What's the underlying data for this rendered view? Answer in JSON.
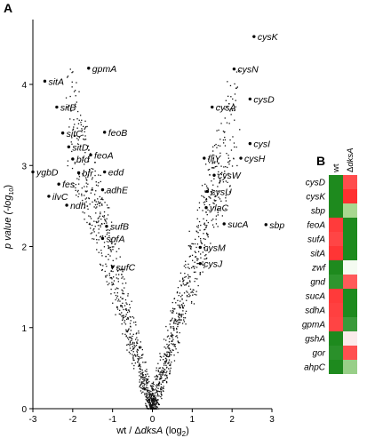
{
  "panel_a_letter": "A",
  "panel_b_letter": "B",
  "chart_data": [
    {
      "type": "scatter",
      "title": "",
      "xlabel_main": "wt / Δ",
      "xlabel_gene": "dksA",
      "xlabel_unit": " (log",
      "xlabel_sub": "2",
      "xlabel_close": ")",
      "ylabel_main": "p value (-log",
      "ylabel_sub": "10",
      "ylabel_close": ")",
      "xlim": [
        -3,
        3
      ],
      "ylim": [
        0,
        4.8
      ],
      "xticks": [
        -3,
        -2,
        -1,
        0,
        1,
        2,
        3
      ],
      "yticks": [
        0,
        1,
        2,
        3,
        4
      ],
      "labeled_points": [
        {
          "gene": "cysK",
          "x": 2.55,
          "y": 4.59
        },
        {
          "gene": "cysN",
          "x": 2.05,
          "y": 4.19
        },
        {
          "gene": "cysD",
          "x": 2.45,
          "y": 3.82
        },
        {
          "gene": "cysA",
          "x": 1.5,
          "y": 3.72
        },
        {
          "gene": "cysI",
          "x": 2.45,
          "y": 3.27
        },
        {
          "gene": "cysH",
          "x": 2.22,
          "y": 3.09
        },
        {
          "gene": "fliY",
          "x": 1.3,
          "y": 3.09
        },
        {
          "gene": "cysW",
          "x": 1.55,
          "y": 2.88
        },
        {
          "gene": "cysU",
          "x": 1.38,
          "y": 2.68
        },
        {
          "gene": "ylaC",
          "x": 1.35,
          "y": 2.48
        },
        {
          "gene": "sucA",
          "x": 1.8,
          "y": 2.28
        },
        {
          "gene": "sbp",
          "x": 2.85,
          "y": 2.27
        },
        {
          "gene": "cysM",
          "x": 1.2,
          "y": 1.99
        },
        {
          "gene": "cysJ",
          "x": 1.2,
          "y": 1.79
        },
        {
          "gene": "gpmA",
          "x": -1.6,
          "y": 4.2
        },
        {
          "gene": "sitA",
          "x": -2.7,
          "y": 4.04
        },
        {
          "gene": "sitB",
          "x": -2.4,
          "y": 3.72
        },
        {
          "gene": "sitC",
          "x": -2.25,
          "y": 3.4
        },
        {
          "gene": "feoB",
          "x": -1.2,
          "y": 3.41
        },
        {
          "gene": "sitD",
          "x": -2.1,
          "y": 3.23
        },
        {
          "gene": "feoA",
          "x": -1.55,
          "y": 3.13
        },
        {
          "gene": "bfd",
          "x": -2.0,
          "y": 3.08
        },
        {
          "gene": "ygbD",
          "x": -3.0,
          "y": 2.92
        },
        {
          "gene": "bfr",
          "x": -1.85,
          "y": 2.91
        },
        {
          "gene": "edd",
          "x": -1.2,
          "y": 2.92
        },
        {
          "gene": "fes",
          "x": -2.35,
          "y": 2.77
        },
        {
          "gene": "adhE",
          "x": -1.25,
          "y": 2.7
        },
        {
          "gene": "ilvC",
          "x": -2.6,
          "y": 2.62
        },
        {
          "gene": "ndh",
          "x": -2.15,
          "y": 2.51
        },
        {
          "gene": "sufB",
          "x": -1.15,
          "y": 2.25
        },
        {
          "gene": "sufA",
          "x": -1.25,
          "y": 2.1
        },
        {
          "gene": "sufC",
          "x": -1.0,
          "y": 1.75
        }
      ]
    },
    {
      "type": "heatmap",
      "columns": [
        "wt",
        "ΔdksA"
      ],
      "rows": [
        "cysD",
        "cysK",
        "sbp",
        "feoA",
        "sufA",
        "sitA",
        "zwf",
        "gnd",
        "sucA",
        "sdhA",
        "gpmA",
        "gshA",
        "gor",
        "ahpC"
      ],
      "cell_colors": [
        [
          "#1e8a1e",
          "#ff4d4d"
        ],
        [
          "#1e8a1e",
          "#ff3030"
        ],
        [
          "#1e8a1e",
          "#a8d890"
        ],
        [
          "#ff3b3b",
          "#1e8a1e"
        ],
        [
          "#ff4545",
          "#1e8a1e"
        ],
        [
          "#ff3535",
          "#1e8a1e"
        ],
        [
          "#1e8a1e",
          "#f4fbf1"
        ],
        [
          "#2e952e",
          "#ff5a5a"
        ],
        [
          "#ff3a3a",
          "#1e8a1e"
        ],
        [
          "#ff4040",
          "#1e8a1e"
        ],
        [
          "#ff4444",
          "#3a9a3a"
        ],
        [
          "#1e8a1e",
          "#fbeaea"
        ],
        [
          "#2a902a",
          "#ff5050"
        ],
        [
          "#1e8a1e",
          "#98cf88"
        ]
      ]
    }
  ]
}
